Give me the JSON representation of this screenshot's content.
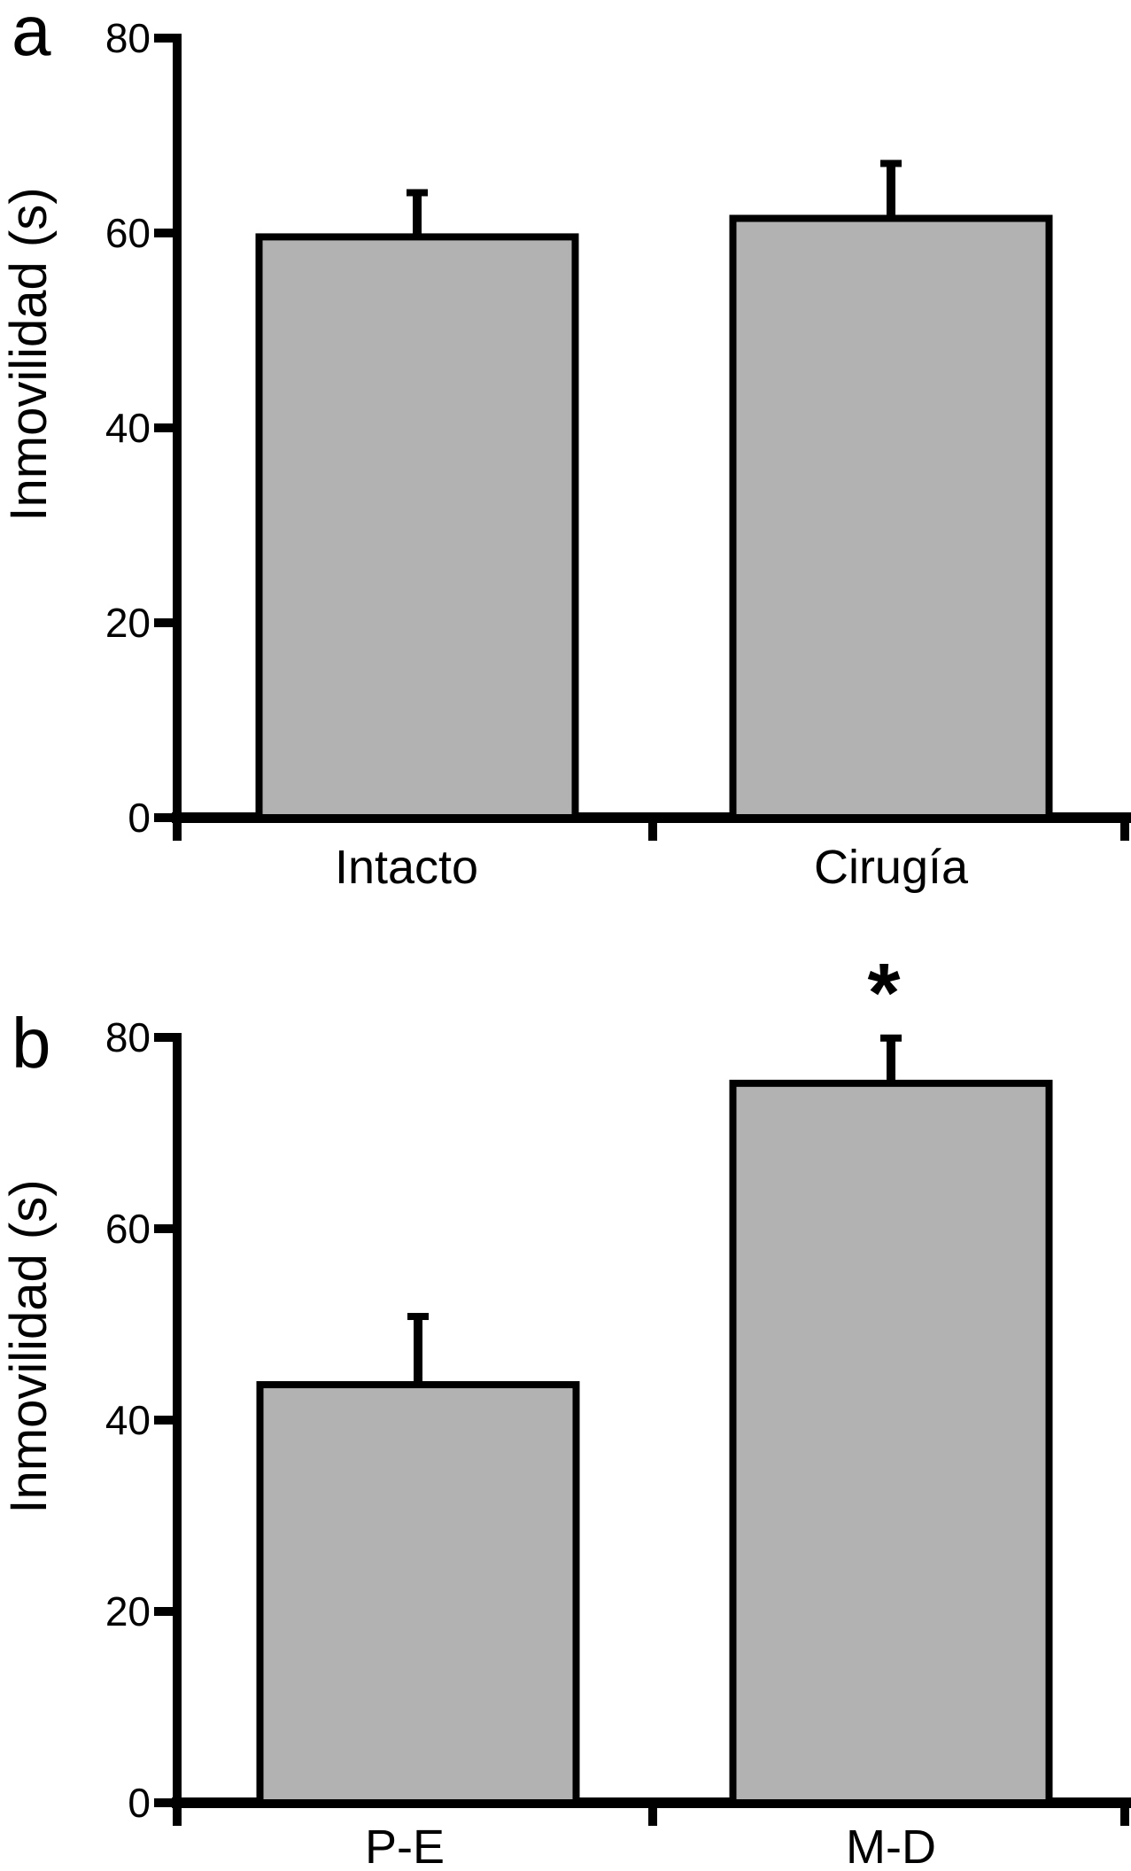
{
  "figure": {
    "background": "#FFFFFF",
    "bar_fill": "#B2B2B2",
    "line_color": "#000000",
    "description": "Two stacked bar-chart panels with SEM error bars"
  },
  "chart_data": [
    {
      "type": "bar",
      "panel_label": "a",
      "title": "",
      "xlabel": "",
      "ylabel": "Inmovilidad (s)",
      "ylim": [
        0,
        80
      ],
      "yticks": [
        0,
        20,
        40,
        60,
        80
      ],
      "categories": [
        "Intacto",
        "Cirugía"
      ],
      "values": [
        59.6,
        61.5
      ],
      "errors_plus": [
        4.9,
        6.0
      ],
      "grid": "off",
      "legend": "none",
      "annotations": []
    },
    {
      "type": "bar",
      "panel_label": "b",
      "title": "",
      "xlabel": "",
      "ylabel": "Inmovilidad (s)",
      "ylim": [
        0,
        80
      ],
      "yticks": [
        0,
        20,
        40,
        60,
        80
      ],
      "categories": [
        "P-E",
        "M-D"
      ],
      "values": [
        43.7,
        75.2
      ],
      "errors_plus": [
        7.5,
        5.1
      ],
      "grid": "off",
      "legend": "none",
      "annotations": [
        {
          "text": "*",
          "category": "M-D",
          "category_index": 1,
          "meaning": "significant difference"
        }
      ]
    }
  ]
}
